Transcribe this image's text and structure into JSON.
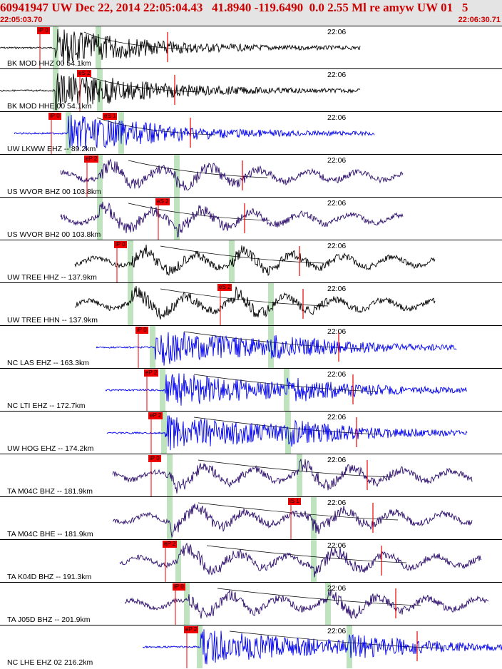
{
  "header": {
    "title": "60941947 UW Dec 22, 2014 22:05:04.43   41.8940 -119.6490  0.0 2.55 Ml re amyw UW 01   5",
    "start_time": "22:05:03.70",
    "end_time": "22:06:30.71",
    "background": "#e4e4e4",
    "text_color": "#cc0000"
  },
  "tick_label": "22:06",
  "colors": {
    "black": "#000000",
    "blue": "#0000ee",
    "purple": "#2a0b6b",
    "pick": "#ee0000",
    "window": "#bfe3bf"
  },
  "traces": [
    {
      "label": "BK MOD HHZ 00 54.1km",
      "color": "black",
      "pick": "iP 0"
    },
    {
      "label": "BK MOD HHE 00 54.1km",
      "color": "black",
      "pick": "eS 2"
    },
    {
      "label": "UW LKWW EHZ -- 89.2km",
      "color": "blue",
      "pick": "iP 0",
      "pick2": "eS 1"
    },
    {
      "label": "US WVOR BHZ 00 103.8km",
      "color": "purple",
      "pick": "eP 2"
    },
    {
      "label": "US WVOR BH2 00 103.8km",
      "color": "purple",
      "pick": "eS 2"
    },
    {
      "label": "UW TREE HHZ -- 137.9km",
      "color": "black",
      "pick": "iP 0"
    },
    {
      "label": "UW TREE HHN -- 137.9km",
      "color": "black",
      "pick": "eS 2"
    },
    {
      "label": "NC LAS EHZ -- 163.3km",
      "color": "blue",
      "pick": "iP 0"
    },
    {
      "label": "NC LTI EHZ -- 172.7km",
      "color": "blue",
      "pick": "eP 2"
    },
    {
      "label": "UW HOG EHZ -- 174.2km",
      "color": "blue",
      "pick": "eP 2"
    },
    {
      "label": "TA M04C BHZ -- 181.9km",
      "color": "purple",
      "pick": "iP 0"
    },
    {
      "label": "TA M04C BHE -- 181.9km",
      "color": "purple",
      "pick": "iS 1"
    },
    {
      "label": "TA K04D BHZ -- 191.3km",
      "color": "purple",
      "pick": "eP 2"
    },
    {
      "label": "TA J05D BHZ -- 201.9km",
      "color": "purple",
      "pick": "iP 0"
    },
    {
      "label": "NC LHE EHZ 02 216.2km",
      "color": "blue",
      "pick": "eP 2"
    }
  ]
}
